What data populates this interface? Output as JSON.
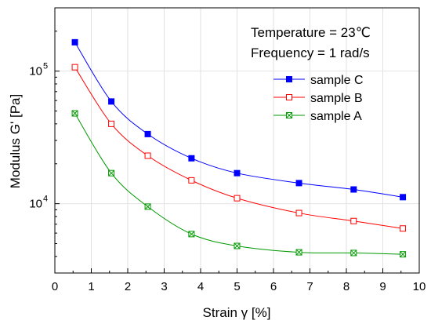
{
  "chart_data": {
    "type": "scatter",
    "title": "",
    "xlabel": "Strain γ [%]",
    "ylabel": "Modulus G' [Pa]",
    "xlim": [
      0,
      10
    ],
    "ylim": [
      3000,
      300000
    ],
    "yscale": "log",
    "grid": true,
    "legend_position": "top-right",
    "x_ticks": [
      "0",
      "1",
      "2",
      "3",
      "4",
      "5",
      "6",
      "7",
      "8",
      "9",
      "10"
    ],
    "y_ticks": [
      {
        "value": 10000,
        "base": "10",
        "exp": "4"
      },
      {
        "value": 100000,
        "base": "10",
        "exp": "5"
      }
    ],
    "annotations": [
      "Temperature = 23℃",
      "Frequency = 1 rad/s"
    ],
    "series": [
      {
        "name": "sample C",
        "color": "#0000ff",
        "marker": "filled-square",
        "x": [
          0.55,
          1.55,
          2.55,
          3.75,
          5.0,
          6.7,
          8.2,
          9.55
        ],
        "y": [
          165000,
          59000,
          33500,
          22000,
          17000,
          14300,
          12800,
          11200
        ]
      },
      {
        "name": "sample B",
        "color": "#ff0000",
        "marker": "open-square",
        "x": [
          0.55,
          1.55,
          2.55,
          3.75,
          5.0,
          6.7,
          8.2,
          9.55
        ],
        "y": [
          107000,
          40000,
          23000,
          15000,
          11000,
          8500,
          7400,
          6500
        ]
      },
      {
        "name": "sample A",
        "color": "#009900",
        "marker": "crossed-square",
        "x": [
          0.55,
          1.55,
          2.55,
          3.75,
          5.0,
          6.7,
          8.2,
          9.55
        ],
        "y": [
          48000,
          17000,
          9500,
          5900,
          4800,
          4300,
          4250,
          4150
        ]
      }
    ]
  }
}
